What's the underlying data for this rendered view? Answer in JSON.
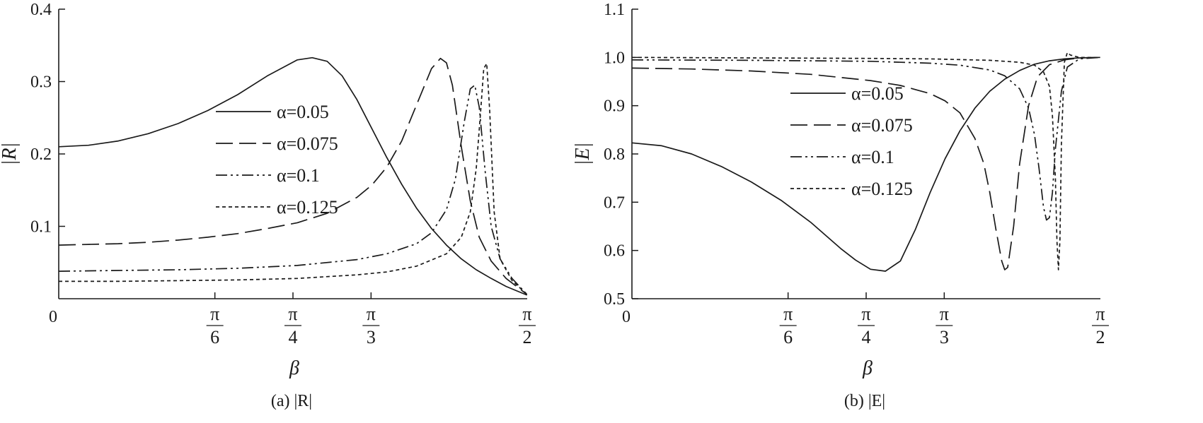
{
  "chart_data": [
    {
      "type": "line",
      "caption": "(a) |R|",
      "ylabel": "|R|",
      "xlabel": "β",
      "xlim": [
        0,
        1.5708
      ],
      "ylim": [
        0,
        0.4
      ],
      "x_ticks": [
        {
          "value": 0,
          "num": "0",
          "den": ""
        },
        {
          "value": 0.5236,
          "num": "π",
          "den": "6"
        },
        {
          "value": 0.7854,
          "num": "π",
          "den": "4"
        },
        {
          "value": 1.0472,
          "num": "π",
          "den": "3"
        },
        {
          "value": 1.5708,
          "num": "π",
          "den": "2"
        }
      ],
      "y_ticks": [
        {
          "value": 0.1,
          "label": "0.1"
        },
        {
          "value": 0.2,
          "label": "0.2"
        },
        {
          "value": 0.3,
          "label": "0.3"
        },
        {
          "value": 0.4,
          "label": "0.4"
        }
      ],
      "legend_position": "center",
      "series": [
        {
          "name": "α=0.05",
          "dash": "solid",
          "x": [
            0,
            0.1,
            0.2,
            0.3,
            0.4,
            0.5,
            0.6,
            0.7,
            0.8,
            0.85,
            0.9,
            0.95,
            1.0,
            1.05,
            1.1,
            1.15,
            1.2,
            1.25,
            1.3,
            1.35,
            1.4,
            1.45,
            1.5,
            1.57
          ],
          "y": [
            0.21,
            0.212,
            0.218,
            0.228,
            0.242,
            0.26,
            0.282,
            0.308,
            0.33,
            0.333,
            0.328,
            0.308,
            0.275,
            0.235,
            0.195,
            0.158,
            0.125,
            0.097,
            0.074,
            0.055,
            0.04,
            0.028,
            0.017,
            0.005
          ]
        },
        {
          "name": "α=0.075",
          "dash": "dash",
          "x": [
            0,
            0.1,
            0.2,
            0.3,
            0.4,
            0.5,
            0.6,
            0.7,
            0.8,
            0.9,
            1.0,
            1.05,
            1.1,
            1.15,
            1.2,
            1.25,
            1.28,
            1.3,
            1.32,
            1.35,
            1.38,
            1.41,
            1.45,
            1.5,
            1.57
          ],
          "y": [
            0.074,
            0.075,
            0.076,
            0.078,
            0.081,
            0.085,
            0.09,
            0.097,
            0.105,
            0.118,
            0.14,
            0.157,
            0.182,
            0.218,
            0.268,
            0.318,
            0.332,
            0.326,
            0.295,
            0.21,
            0.135,
            0.085,
            0.052,
            0.028,
            0.006
          ]
        },
        {
          "name": "α=0.1",
          "dash": "dashdotdot",
          "x": [
            0,
            0.2,
            0.4,
            0.6,
            0.8,
            1.0,
            1.1,
            1.2,
            1.25,
            1.3,
            1.33,
            1.36,
            1.38,
            1.395,
            1.41,
            1.43,
            1.45,
            1.48,
            1.52,
            1.57
          ],
          "y": [
            0.038,
            0.039,
            0.04,
            0.042,
            0.046,
            0.054,
            0.062,
            0.076,
            0.091,
            0.123,
            0.165,
            0.245,
            0.29,
            0.295,
            0.265,
            0.175,
            0.1,
            0.055,
            0.028,
            0.006
          ]
        },
        {
          "name": "α=0.125",
          "dash": "dot",
          "x": [
            0,
            0.2,
            0.4,
            0.6,
            0.8,
            1.0,
            1.1,
            1.2,
            1.3,
            1.35,
            1.38,
            1.4,
            1.415,
            1.425,
            1.435,
            1.445,
            1.46,
            1.48,
            1.52,
            1.57
          ],
          "y": [
            0.024,
            0.024,
            0.025,
            0.026,
            0.028,
            0.033,
            0.037,
            0.045,
            0.062,
            0.085,
            0.12,
            0.18,
            0.26,
            0.318,
            0.325,
            0.26,
            0.12,
            0.055,
            0.025,
            0.006
          ]
        }
      ]
    },
    {
      "type": "line",
      "caption": "(b) |E|",
      "ylabel": "|E|",
      "xlabel": "β",
      "xlim": [
        0,
        1.5708
      ],
      "ylim": [
        0.5,
        1.1
      ],
      "x_ticks": [
        {
          "value": 0,
          "num": "0",
          "den": ""
        },
        {
          "value": 0.5236,
          "num": "π",
          "den": "6"
        },
        {
          "value": 0.7854,
          "num": "π",
          "den": "4"
        },
        {
          "value": 1.0472,
          "num": "π",
          "den": "3"
        },
        {
          "value": 1.5708,
          "num": "π",
          "den": "2"
        }
      ],
      "y_ticks": [
        {
          "value": 0.5,
          "label": "0.5"
        },
        {
          "value": 0.6,
          "label": "0.6"
        },
        {
          "value": 0.7,
          "label": "0.7"
        },
        {
          "value": 0.8,
          "label": "0.8"
        },
        {
          "value": 0.9,
          "label": "0.9"
        },
        {
          "value": 1.0,
          "label": "1.0"
        },
        {
          "value": 1.1,
          "label": "1.1"
        }
      ],
      "legend_position": "center",
      "series": [
        {
          "name": "α=0.05",
          "dash": "solid",
          "x": [
            0,
            0.1,
            0.2,
            0.3,
            0.4,
            0.5,
            0.6,
            0.7,
            0.75,
            0.8,
            0.85,
            0.9,
            0.95,
            1.0,
            1.05,
            1.1,
            1.15,
            1.2,
            1.25,
            1.3,
            1.35,
            1.4,
            1.45,
            1.5,
            1.57
          ],
          "y": [
            0.823,
            0.817,
            0.8,
            0.774,
            0.742,
            0.704,
            0.658,
            0.604,
            0.58,
            0.561,
            0.557,
            0.578,
            0.643,
            0.72,
            0.79,
            0.848,
            0.895,
            0.93,
            0.955,
            0.973,
            0.986,
            0.993,
            0.997,
            0.999,
            1.0
          ]
        },
        {
          "name": "α=0.075",
          "dash": "dash",
          "x": [
            0,
            0.2,
            0.4,
            0.6,
            0.8,
            0.9,
            1.0,
            1.05,
            1.1,
            1.15,
            1.18,
            1.2,
            1.22,
            1.24,
            1.25,
            1.26,
            1.28,
            1.3,
            1.33,
            1.36,
            1.4,
            1.45,
            1.5,
            1.57
          ],
          "y": [
            0.978,
            0.976,
            0.972,
            0.965,
            0.952,
            0.942,
            0.925,
            0.91,
            0.885,
            0.832,
            0.78,
            0.72,
            0.645,
            0.578,
            0.56,
            0.565,
            0.65,
            0.78,
            0.9,
            0.96,
            0.985,
            0.995,
            0.999,
            1.0
          ]
        },
        {
          "name": "α=0.1",
          "dash": "dashdotdot",
          "x": [
            0,
            0.4,
            0.8,
            1.0,
            1.1,
            1.2,
            1.25,
            1.3,
            1.33,
            1.35,
            1.365,
            1.38,
            1.39,
            1.4,
            1.41,
            1.42,
            1.44,
            1.46,
            1.5,
            1.57
          ],
          "y": [
            0.995,
            0.994,
            0.992,
            0.988,
            0.984,
            0.974,
            0.962,
            0.935,
            0.895,
            0.84,
            0.77,
            0.69,
            0.663,
            0.668,
            0.72,
            0.81,
            0.93,
            0.98,
            0.997,
            1.0
          ]
        },
        {
          "name": "α=0.125",
          "dash": "dot",
          "x": [
            0,
            0.4,
            0.8,
            1.0,
            1.2,
            1.3,
            1.35,
            1.38,
            1.4,
            1.41,
            1.42,
            1.425,
            1.43,
            1.435,
            1.44,
            1.45,
            1.46,
            1.47,
            1.5,
            1.57
          ],
          "y": [
            1.0,
            0.999,
            0.998,
            0.997,
            0.994,
            0.99,
            0.984,
            0.97,
            0.94,
            0.88,
            0.75,
            0.62,
            0.56,
            0.62,
            0.82,
            0.99,
            1.01,
            1.005,
            1.0,
            1.0
          ]
        }
      ]
    }
  ]
}
